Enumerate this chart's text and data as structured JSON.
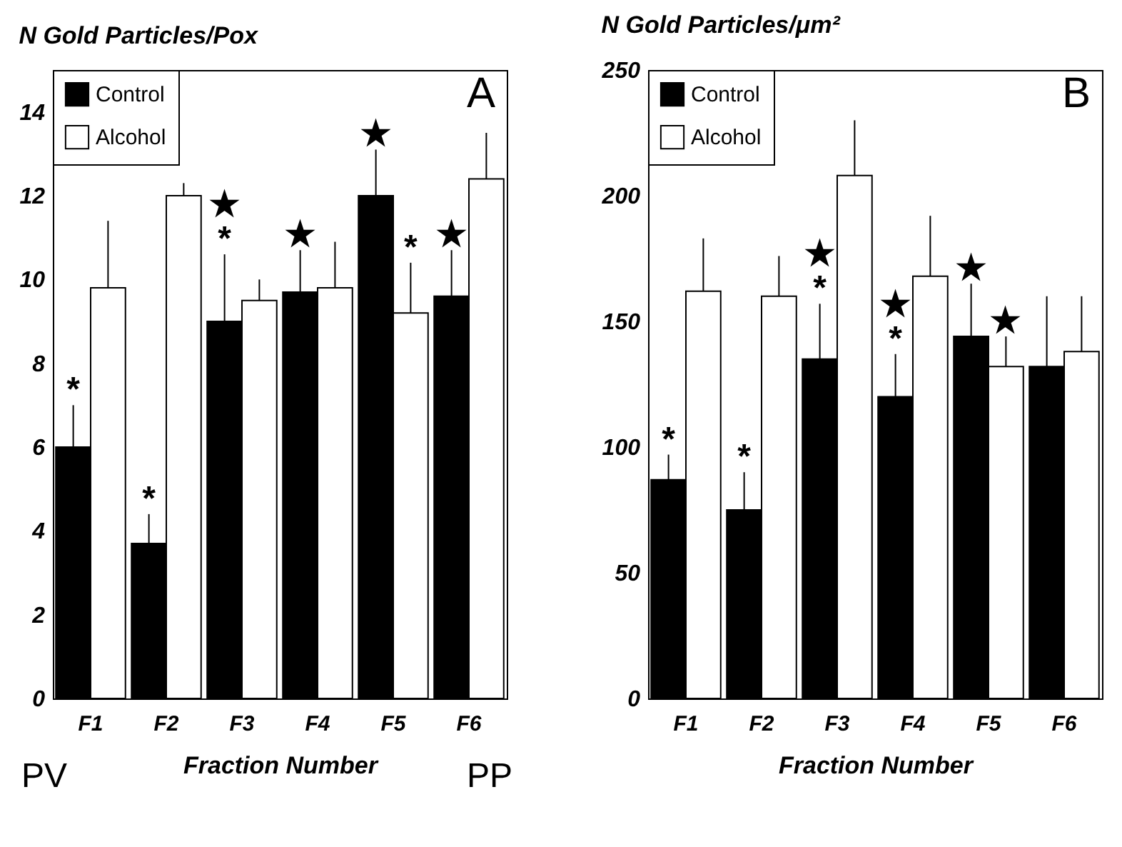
{
  "chart_data": [
    {
      "type": "bar",
      "title": "N Gold Particles/Pox",
      "xlabel": "Fraction Number",
      "categories": [
        "F1",
        "F2",
        "F3",
        "F4",
        "F5",
        "F6"
      ],
      "series": [
        {
          "name": "Control",
          "color": "#000000",
          "values": [
            6.0,
            3.7,
            9.0,
            9.7,
            12.0,
            9.6
          ],
          "errors": [
            [
              6.0,
              7.0
            ],
            [
              3.7,
              4.4
            ],
            [
              9.0,
              10.6
            ],
            [
              9.7,
              10.7
            ],
            [
              12.0,
              13.1
            ],
            [
              9.6,
              10.7
            ]
          ]
        },
        {
          "name": "Alcohol",
          "color": "#ffffff",
          "values": [
            9.8,
            12.0,
            9.5,
            9.8,
            9.2,
            12.4
          ],
          "errors": [
            [
              9.8,
              11.4
            ],
            [
              12.0,
              12.3
            ],
            [
              9.5,
              10.0
            ],
            [
              9.8,
              10.9
            ],
            [
              9.2,
              10.4
            ],
            [
              12.4,
              13.5
            ]
          ]
        }
      ],
      "ylim": [
        0,
        15
      ],
      "yticks": [
        0,
        2,
        4,
        6,
        8,
        10,
        12,
        14
      ],
      "grid": false,
      "legend": "top left",
      "annotations": [
        "A",
        "PV",
        "PP",
        {
          "text": "*",
          "x": "F1",
          "y": 6.0
        },
        {
          "text": "*",
          "x": "F2",
          "y": 3.7
        },
        {
          "text": "★\n*",
          "x": "F3",
          "y": 9.0
        },
        {
          "text": "★",
          "x": "F4",
          "y": 9.7
        },
        {
          "text": "★",
          "x": "F5",
          "y": 12.0
        },
        {
          "text": "*",
          "x": "F5",
          "y": 9.2
        },
        {
          "text": "★",
          "x": "F6",
          "y": 9.6
        }
      ]
    },
    {
      "type": "bar",
      "title": "N Gold Particles/μm²",
      "xlabel": "Fraction Number",
      "categories": [
        "F1",
        "F2",
        "F3",
        "F4",
        "F5",
        "F6"
      ],
      "series": [
        {
          "name": "Control",
          "color": "#000000",
          "values": [
            87,
            75,
            135,
            120,
            144,
            132
          ],
          "errors": [
            [
              87,
              97
            ],
            [
              75,
              90
            ],
            [
              135,
              157
            ],
            [
              120,
              137
            ],
            [
              144,
              165
            ],
            [
              132,
              160
            ]
          ]
        },
        {
          "name": "Alcohol",
          "color": "#ffffff",
          "values": [
            162,
            160,
            208,
            168,
            132,
            138
          ],
          "errors": [
            [
              162,
              183
            ],
            [
              160,
              176
            ],
            [
              208,
              230
            ],
            [
              168,
              192
            ],
            [
              132,
              144
            ],
            [
              138,
              160
            ]
          ]
        }
      ],
      "ylim": [
        0,
        250
      ],
      "yticks": [
        0,
        50,
        100,
        150,
        200,
        250
      ],
      "grid": false,
      "legend": "top left",
      "annotations": [
        "B",
        {
          "text": "*",
          "x": "F1",
          "y": 87
        },
        {
          "text": "*",
          "x": "F2",
          "y": 75
        },
        {
          "text": "★\n*",
          "x": "F3",
          "y": 135
        },
        {
          "text": "★\n*",
          "x": "F4",
          "y": 120
        },
        {
          "text": "★",
          "x": "F5",
          "y": 144
        },
        {
          "text": "★",
          "x": "F5",
          "y": 132
        }
      ]
    }
  ]
}
